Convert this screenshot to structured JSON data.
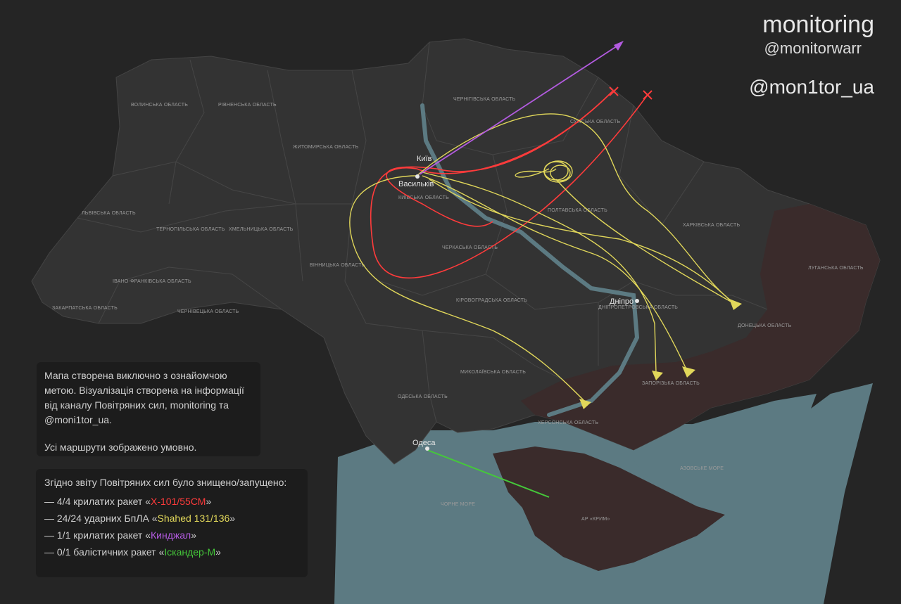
{
  "brand": {
    "title": "monitoring",
    "handle1": "@monitorwarr",
    "handle2": "@mon1tor_ua"
  },
  "colors": {
    "background": "#252525",
    "land": "#333333",
    "occupied": "#3a2b2b",
    "sea": "#5c7a82",
    "kh101": "#ff3b3b",
    "shahed": "#e1d75a",
    "kinzhal": "#b35be0",
    "iskander": "#45c83a"
  },
  "regions": [
    "ВОЛИНСЬКА ОБЛАСТЬ",
    "РІВНЕНСЬКА ОБЛАСТЬ",
    "ЖИТОМИРСЬКА ОБЛАСТЬ",
    "ЧЕРНІГІВСЬКА ОБЛАСТЬ",
    "СУМСЬКА ОБЛАСТЬ",
    "КИЇВСЬКА ОБЛАСТЬ",
    "ЛЬВІВСЬКА ОБЛАСТЬ",
    "ТЕРНОПІЛЬСЬКА ОБЛАСТЬ",
    "ХМЕЛЬНИЦЬКА ОБЛАСТЬ",
    "ПОЛТАВСЬКА ОБЛАСТЬ",
    "ХАРКІВСЬКА ОБЛАСТЬ",
    "ЧЕРКАСЬКА ОБЛАСТЬ",
    "ВІННИЦЬКА ОБЛАСТЬ",
    "ЛУГАНСЬКА ОБЛАСТЬ",
    "ІВАНО-ФРАНКІВСЬКА ОБЛАСТЬ",
    "ЗАКАРПАТСЬКА ОБЛАСТЬ",
    "ЧЕРНІВЕЦЬКА ОБЛАСТЬ",
    "КІРОВОГРАДСЬКА ОБЛАСТЬ",
    "ДНІПРОПЕТРОВСЬКА ОБЛАСТЬ",
    "ДОНЕЦЬКА ОБЛАСТЬ",
    "МИКОЛАЇВСЬКА ОБЛАСТЬ",
    "ЗАПОРІЗЬКА ОБЛАСТЬ",
    "ОДЕСЬКА ОБЛАСТЬ",
    "ХЕРСОНСЬКА ОБЛАСТЬ",
    "АЗОВСЬКЕ МОРЕ",
    "ЧОРНЕ МОРЕ",
    "АР «КРИМ»"
  ],
  "cities": [
    "Київ",
    "Васильків",
    "Дніпро",
    "Одеса"
  ],
  "note": {
    "text": "Мапа створена виключно з ознайомчою метою. Візуалізація створена на інформації від каналу Повітряних сил, monitoring та @moni1tor_ua.",
    "routes_note": "Усі маршрути зображено умовно."
  },
  "legend": {
    "title": "Згідно звіту Повітряних сил було знищено/запущено:",
    "items": [
      {
        "prefix": "— 4/4 крилатих ракет «",
        "name": "Х-101/55СМ",
        "suffix": "»",
        "color": "red"
      },
      {
        "prefix": "— 24/24 ударних БпЛА «",
        "name": "Shahed 131/136",
        "suffix": "»",
        "color": "yellow"
      },
      {
        "prefix": "— 1/1 крилатих ракет «",
        "name": "Кинджал",
        "suffix": "»",
        "color": "purple"
      },
      {
        "prefix": "— 0/1 балістичних ракет «",
        "name": "Іскандер-М",
        "suffix": "»",
        "color": "green"
      }
    ]
  },
  "icons": {
    "missile": "x-mark-icon",
    "drone": "triangle-drone-icon",
    "kinzhal": "arrow-icon",
    "city": "dot-icon"
  }
}
